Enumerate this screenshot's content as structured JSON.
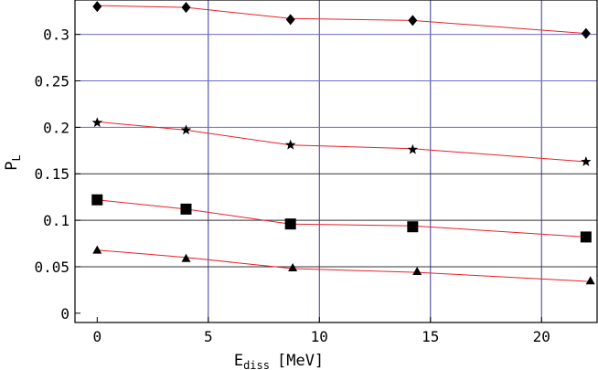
{
  "chart_data": {
    "type": "scatter",
    "xlabel": "E",
    "xlabel_sub": "diss",
    "xlabel_unit": "[MeV]",
    "ylabel": "P",
    "ylabel_sub": "L",
    "xlim": [
      -1,
      22.5
    ],
    "ylim": [
      -0.01,
      0.337
    ],
    "x_ticks": [
      0,
      5,
      10,
      15,
      20
    ],
    "x_tick_labels": [
      "0",
      "5",
      "10",
      "15",
      "20"
    ],
    "y_ticks": [
      0,
      0.05,
      0.1,
      0.15,
      0.2,
      0.25,
      0.3
    ],
    "y_tick_labels": [
      "0",
      "0.05",
      "0.1",
      "0.15",
      "0.2",
      "0.25",
      "0.3"
    ],
    "x_grid": [
      5,
      10,
      15,
      20
    ],
    "grid_color_x": "#3a3a9a",
    "grid_lines_y": [
      {
        "y": 0.05,
        "color": "#333333"
      },
      {
        "y": 0.1,
        "color": "#333333"
      },
      {
        "y": 0.15,
        "color": "#333333"
      },
      {
        "y": 0.2,
        "color": "#6a6acc"
      },
      {
        "y": 0.25,
        "color": "#6a6acc"
      },
      {
        "y": 0.3,
        "color": "#6a6acc"
      }
    ],
    "fit_line_color": "#e8202a",
    "series": [
      {
        "marker": "diamond",
        "points": [
          [
            0,
            0.33
          ],
          [
            4,
            0.329
          ],
          [
            8.7,
            0.316
          ],
          [
            14.2,
            0.315
          ],
          [
            22,
            0.301
          ]
        ],
        "fit": [
          [
            0,
            0.331
          ],
          [
            4,
            0.329
          ],
          [
            8.7,
            0.317
          ],
          [
            14.2,
            0.315
          ],
          [
            22,
            0.301
          ]
        ]
      },
      {
        "marker": "star",
        "points": [
          [
            0,
            0.205
          ],
          [
            4,
            0.197
          ],
          [
            8.7,
            0.181
          ],
          [
            14.2,
            0.176
          ],
          [
            22,
            0.163
          ]
        ],
        "fit": [
          [
            0,
            0.206
          ],
          [
            4,
            0.197
          ],
          [
            8.7,
            0.181
          ],
          [
            14.2,
            0.177
          ],
          [
            22,
            0.163
          ]
        ]
      },
      {
        "marker": "square",
        "points": [
          [
            0,
            0.122
          ],
          [
            4,
            0.112
          ],
          [
            8.7,
            0.096
          ],
          [
            14.2,
            0.093
          ],
          [
            22,
            0.082
          ]
        ],
        "fit": [
          [
            0,
            0.122
          ],
          [
            4,
            0.112
          ],
          [
            8.7,
            0.096
          ],
          [
            14.2,
            0.094
          ],
          [
            22,
            0.082
          ]
        ]
      },
      {
        "marker": "triangle",
        "points": [
          [
            0,
            0.068
          ],
          [
            4,
            0.059
          ],
          [
            8.8,
            0.049
          ],
          [
            14.4,
            0.045
          ],
          [
            22.2,
            0.035
          ]
        ],
        "fit": [
          [
            0,
            0.068
          ],
          [
            4,
            0.06
          ],
          [
            8.8,
            0.048
          ],
          [
            14.4,
            0.044
          ],
          [
            22.2,
            0.034
          ]
        ]
      }
    ]
  }
}
